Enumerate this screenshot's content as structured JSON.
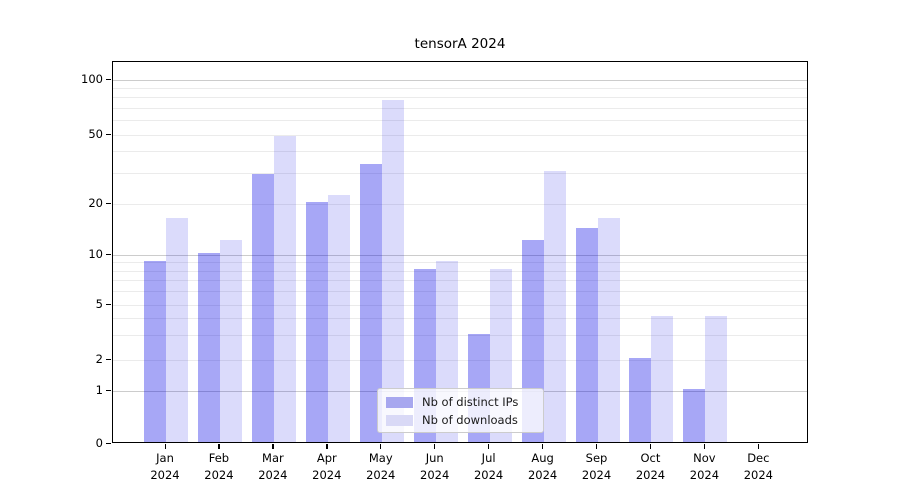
{
  "title": "tensorA 2024",
  "y_axis": {
    "tick_labels": [
      "0",
      "1",
      "2",
      "5",
      "10",
      "20",
      "50",
      "100"
    ]
  },
  "x_axis": {
    "year": "2024"
  },
  "legend": {
    "items": [
      {
        "label": "Nb of distinct IPs",
        "swatch": "#a7a7ef"
      },
      {
        "label": "Nb of downloads",
        "swatch": "#d9d9f6"
      }
    ]
  },
  "colors": {
    "bar_ips": "rgba(0,0,230,0.345)",
    "bar_downloads": "rgba(8,8,230,0.145)",
    "grid_minor": "#ebebeb",
    "grid_major": "#cccccc",
    "frame": "#000000"
  },
  "chart_data": {
    "type": "bar",
    "title": "tensorA 2024",
    "categories": [
      "Jan 2024",
      "Feb 2024",
      "Mar 2024",
      "Apr 2024",
      "May 2024",
      "Jun 2024",
      "Jul 2024",
      "Aug 2024",
      "Sep 2024",
      "Oct 2024",
      "Nov 2024",
      "Dec 2024"
    ],
    "series": [
      {
        "name": "Nb of distinct IPs",
        "values": [
          9,
          10,
          29,
          20,
          33,
          8,
          3,
          12,
          14,
          2,
          1,
          0
        ]
      },
      {
        "name": "Nb of downloads",
        "values": [
          16,
          12,
          48,
          22,
          76,
          9,
          8,
          30,
          16,
          4,
          4,
          0
        ]
      }
    ],
    "yscale": "symlog",
    "y_ticks": [
      0,
      1,
      2,
      5,
      10,
      20,
      50,
      100
    ],
    "y_minor_gridlines": [
      2,
      3,
      4,
      5,
      6,
      7,
      8,
      9,
      20,
      30,
      40,
      50,
      60,
      70,
      80,
      90
    ],
    "y_major_gridlines": [
      1,
      10,
      100
    ],
    "ylim": [
      0,
      140
    ],
    "grid": true,
    "legend_position": "lower center"
  }
}
